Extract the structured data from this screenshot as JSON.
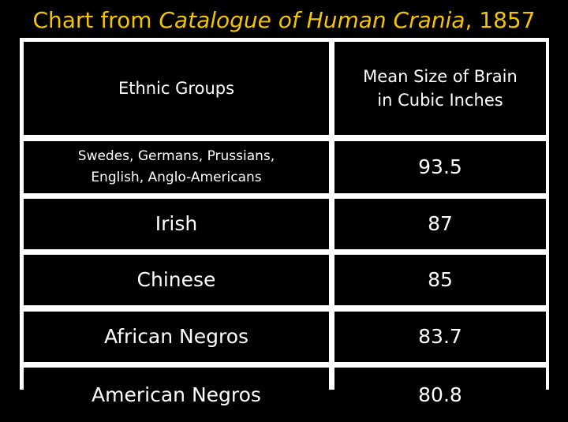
{
  "title": {
    "prefix": "Chart from ",
    "italic": "Catalogue of Human Crania",
    "suffix": ", 1857"
  },
  "colors": {
    "background": "#000000",
    "title": "#f5c400",
    "text": "#ffffff",
    "grid": "#ffffff"
  },
  "chart_data": {
    "type": "table",
    "title": "Chart from Catalogue of Human Crania, 1857",
    "columns": [
      "Ethnic Groups",
      "Mean Size of Brain\nin Cubic Inches"
    ],
    "rows": [
      {
        "group": "Swedes, Germans, Prussians,\nEnglish, Anglo-Americans",
        "value": "93.5"
      },
      {
        "group": "Irish",
        "value": "87"
      },
      {
        "group": "Chinese",
        "value": "85"
      },
      {
        "group": "African Negros",
        "value": "83.7"
      },
      {
        "group": "American Negros",
        "value": "80.8"
      }
    ]
  }
}
